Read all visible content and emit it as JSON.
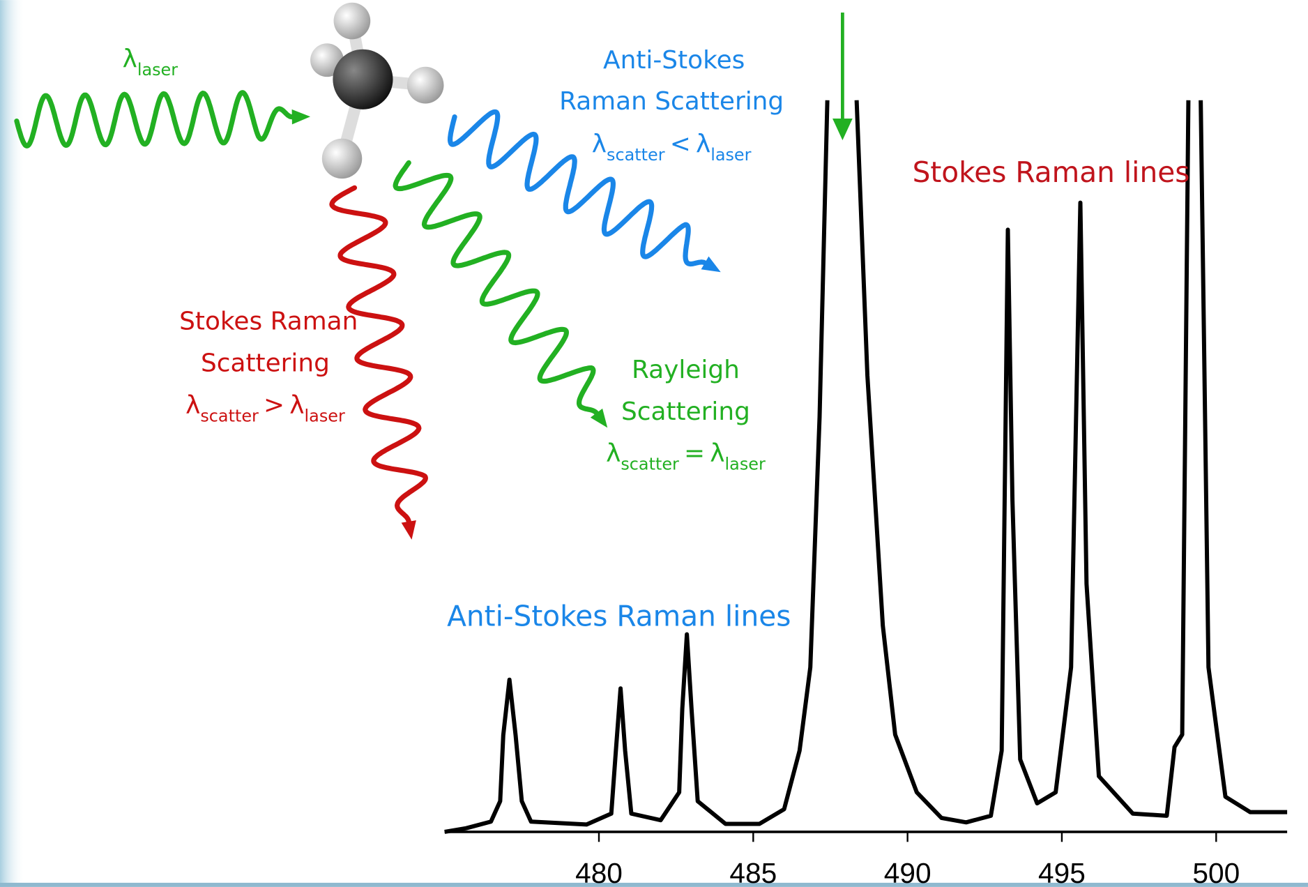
{
  "diagram": {
    "incident": {
      "symbol": "λ",
      "sub": "laser"
    },
    "anti_stokes": {
      "lines": [
        "Anti-Stokes",
        "Raman Scattering"
      ],
      "relation": {
        "lhs": "λ",
        "lhs_sub": "scatter",
        "op": "<",
        "rhs": "λ",
        "rhs_sub": "laser"
      }
    },
    "stokes": {
      "lines": [
        "Stokes Raman",
        "Scattering"
      ],
      "relation": {
        "lhs": "λ",
        "lhs_sub": "scatter",
        "op": ">",
        "rhs": "λ",
        "rhs_sub": "laser"
      }
    },
    "rayleigh": {
      "lines": [
        "Rayleigh",
        "Scattering"
      ],
      "relation": {
        "lhs": "λ",
        "lhs_sub": "scatter",
        "op": "=",
        "rhs": "λ",
        "rhs_sub": "laser"
      }
    }
  },
  "chart_data": {
    "type": "line",
    "color": "#000000",
    "x": [
      475.0,
      475.7,
      476.5,
      476.8,
      476.9,
      477.1,
      477.3,
      477.5,
      477.8,
      479.6,
      480.4,
      480.55,
      480.7,
      480.85,
      481.05,
      482.0,
      482.6,
      482.7,
      482.85,
      483.0,
      483.2,
      484.1,
      485.2,
      486.0,
      486.5,
      486.85,
      487.15,
      487.4,
      487.9,
      488.35,
      488.7,
      488.95,
      489.2,
      489.6,
      490.3,
      491.1,
      491.9,
      492.7,
      493.05,
      493.25,
      493.4,
      493.65,
      494.2,
      494.8,
      495.3,
      495.6,
      495.8,
      496.2,
      497.3,
      498.4,
      498.65,
      498.9,
      499.1,
      499.3,
      499.5,
      499.75,
      500.3,
      501.1,
      502.3
    ],
    "y": [
      0,
      0.5,
      1.4,
      4.2,
      13.2,
      20.8,
      13.2,
      4.2,
      1.4,
      1.0,
      2.5,
      11.1,
      19.6,
      11.1,
      2.5,
      1.6,
      5.4,
      16.8,
      27.0,
      16.8,
      4.2,
      1.1,
      1.1,
      3.1,
      11.1,
      22.5,
      56.7,
      100,
      null,
      100,
      62.4,
      45.3,
      28.2,
      13.3,
      5.4,
      1.9,
      1.3,
      2.2,
      11.1,
      82.3,
      45.3,
      9.9,
      3.9,
      5.4,
      22.5,
      86.0,
      33.9,
      7.6,
      2.5,
      2.2,
      11.6,
      13.3,
      100,
      null,
      100,
      22.5,
      4.8,
      2.7,
      2.7
    ],
    "xlim": [
      475,
      502.3
    ],
    "ylim": [
      0,
      100
    ],
    "xticks": [
      480,
      485,
      490,
      495,
      500
    ],
    "annotations": [
      {
        "text": "Anti-Stokes Raman lines",
        "color": "#1a86e8"
      },
      {
        "text": "Stokes Raman lines",
        "color": "#c0141c"
      }
    ]
  }
}
